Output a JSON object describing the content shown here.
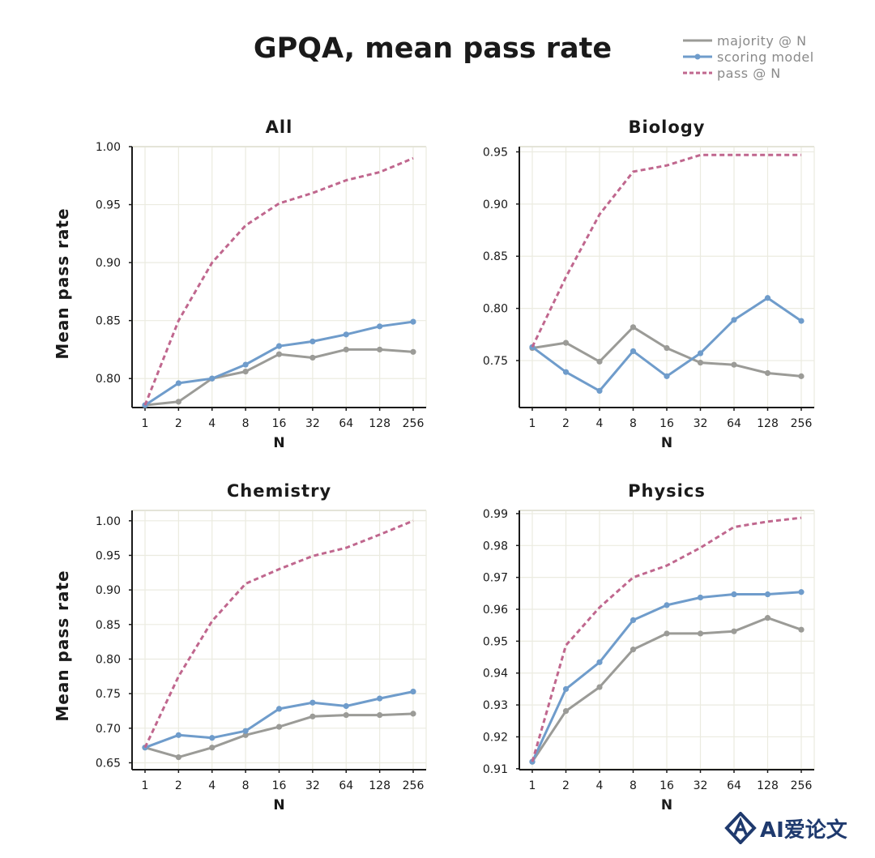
{
  "title": "GPQA, mean pass rate",
  "legend": {
    "items": [
      {
        "label": "majority @ N",
        "color": "#9b9b97",
        "style": "solid"
      },
      {
        "label": "scoring model",
        "color": "#6f9ccb",
        "style": "solid-marker"
      },
      {
        "label": "pass @ N",
        "color": "#c0678e",
        "style": "dashed"
      }
    ]
  },
  "ylabel": "Mean pass rate",
  "watermark": "AI爱论文",
  "chart_data": [
    {
      "type": "line",
      "title": "All",
      "xlabel": "N",
      "x": [
        "1",
        "2",
        "4",
        "8",
        "16",
        "32",
        "64",
        "128",
        "256"
      ],
      "ylim": [
        0.775,
        1.0
      ],
      "yticks": [
        "0.80",
        "0.85",
        "0.90",
        "0.95",
        "1.00"
      ],
      "grid": true,
      "series": [
        {
          "name": "majority @ N",
          "values": [
            0.777,
            0.78,
            0.8,
            0.806,
            0.821,
            0.818,
            0.825,
            0.825,
            0.823
          ]
        },
        {
          "name": "scoring model",
          "values": [
            0.777,
            0.796,
            0.8,
            0.812,
            0.828,
            0.832,
            0.838,
            0.845,
            0.849
          ]
        },
        {
          "name": "pass @ N",
          "values": [
            0.777,
            0.85,
            0.9,
            0.932,
            0.951,
            0.96,
            0.971,
            0.978,
            0.99
          ]
        }
      ]
    },
    {
      "type": "line",
      "title": "Biology",
      "xlabel": "N",
      "x": [
        "1",
        "2",
        "4",
        "8",
        "16",
        "32",
        "64",
        "128",
        "256"
      ],
      "ylim": [
        0.705,
        0.955
      ],
      "yticks": [
        "0.75",
        "0.80",
        "0.85",
        "0.90",
        "0.95"
      ],
      "grid": true,
      "series": [
        {
          "name": "majority @ N",
          "values": [
            0.762,
            0.767,
            0.749,
            0.782,
            0.762,
            0.748,
            0.746,
            0.738,
            0.735
          ]
        },
        {
          "name": "scoring model",
          "values": [
            0.763,
            0.739,
            0.721,
            0.759,
            0.735,
            0.757,
            0.789,
            0.81,
            0.788
          ]
        },
        {
          "name": "pass @ N",
          "values": [
            0.763,
            0.83,
            0.89,
            0.931,
            0.937,
            0.947,
            0.947,
            0.947,
            0.947
          ]
        }
      ]
    },
    {
      "type": "line",
      "title": "Chemistry",
      "xlabel": "N",
      "x": [
        "1",
        "2",
        "4",
        "8",
        "16",
        "32",
        "64",
        "128",
        "256"
      ],
      "ylim": [
        0.64,
        1.015
      ],
      "yticks": [
        "0.65",
        "0.70",
        "0.75",
        "0.80",
        "0.85",
        "0.90",
        "0.95",
        "1.00"
      ],
      "grid": true,
      "series": [
        {
          "name": "majority @ N",
          "values": [
            0.672,
            0.658,
            0.672,
            0.69,
            0.702,
            0.717,
            0.719,
            0.719,
            0.721
          ]
        },
        {
          "name": "scoring model",
          "values": [
            0.672,
            0.69,
            0.686,
            0.696,
            0.728,
            0.737,
            0.732,
            0.743,
            0.753
          ]
        },
        {
          "name": "pass @ N",
          "values": [
            0.672,
            0.775,
            0.855,
            0.909,
            0.93,
            0.949,
            0.961,
            0.98,
            1.0
          ]
        }
      ]
    },
    {
      "type": "line",
      "title": "Physics",
      "xlabel": "N",
      "x": [
        "1",
        "2",
        "4",
        "8",
        "16",
        "32",
        "64",
        "128",
        "256"
      ],
      "ylim": [
        0.9097,
        0.991
      ],
      "yticks": [
        "0.91",
        "0.92",
        "0.93",
        "0.94",
        "0.95",
        "0.96",
        "0.97",
        "0.98",
        "0.99"
      ],
      "grid": true,
      "series": [
        {
          "name": "majority @ N",
          "values": [
            0.9122,
            0.9281,
            0.9356,
            0.9474,
            0.9524,
            0.9524,
            0.9531,
            0.9573,
            0.9536
          ]
        },
        {
          "name": "scoring model",
          "values": [
            0.9122,
            0.935,
            0.9434,
            0.9566,
            0.9613,
            0.9637,
            0.9647,
            0.9647,
            0.9654
          ]
        },
        {
          "name": "pass @ N",
          "values": [
            0.9122,
            0.9487,
            0.9606,
            0.97,
            0.9737,
            0.9793,
            0.9858,
            0.9875,
            0.9887
          ]
        }
      ]
    }
  ]
}
